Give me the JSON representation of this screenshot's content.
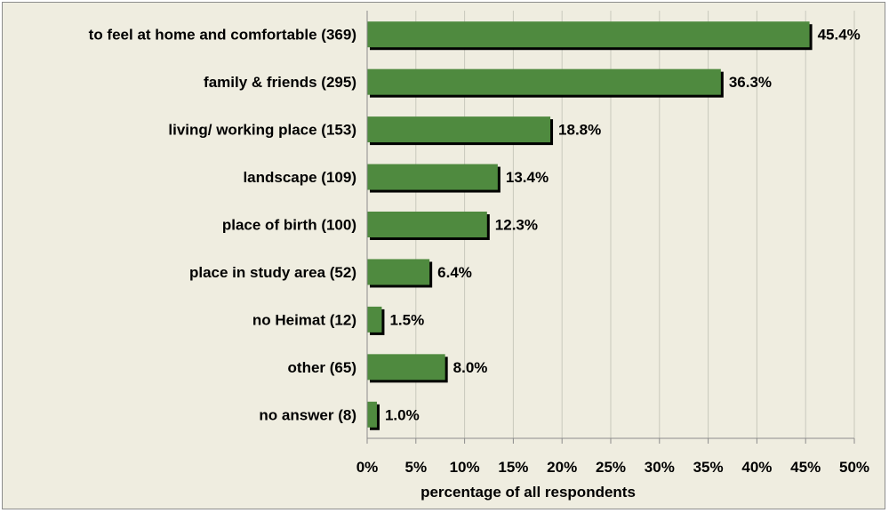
{
  "colors": {
    "background": "#efede0",
    "bar": "#4f8a3f",
    "bar_shadow": "#000000",
    "grid": "#c9c9bd",
    "axis": "#8c8c8c"
  },
  "chart_data": {
    "type": "bar",
    "orientation": "horizontal",
    "categories": [
      "to feel at home and comfortable (369)",
      "family & friends (295)",
      "living/ working place (153)",
      "landscape (109)",
      "place of birth (100)",
      "place in study area (52)",
      "no Heimat (12)",
      "other (65)",
      "no answer (8)"
    ],
    "values": [
      45.4,
      36.3,
      18.8,
      13.4,
      12.3,
      6.4,
      1.5,
      8.0,
      1.0
    ],
    "value_labels": [
      "45.4%",
      "36.3%",
      "18.8%",
      "13.4%",
      "12.3%",
      "6.4%",
      "1.5%",
      "8.0%",
      "1.0%"
    ],
    "x_ticks": [
      "0%",
      "5%",
      "10%",
      "15%",
      "20%",
      "25%",
      "30%",
      "35%",
      "40%",
      "45%",
      "50%"
    ],
    "xlabel": "percentage of all respondents",
    "xlim": [
      0,
      50
    ],
    "grid": true
  }
}
